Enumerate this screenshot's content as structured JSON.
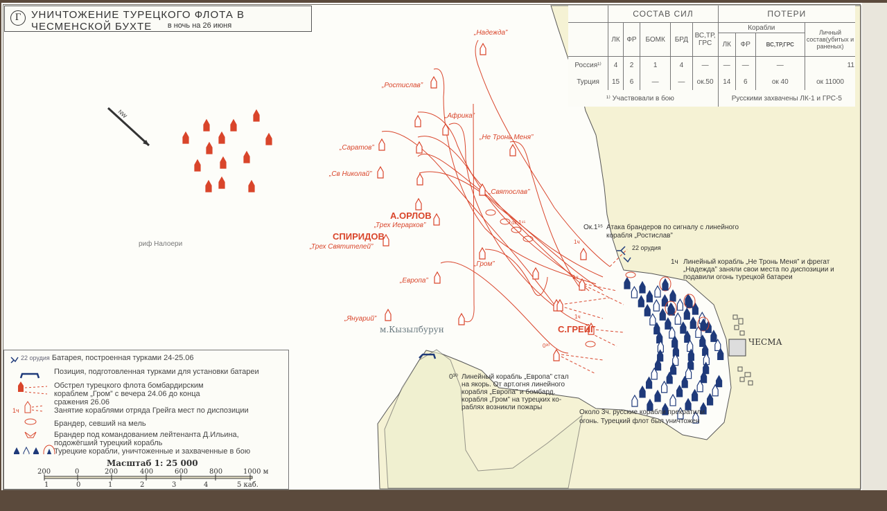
{
  "title": {
    "badge": "Г",
    "main": "УНИЧТОЖЕНИЕ ТУРЕЦКОГО ФЛОТА В ЧЕСМЕНСКОЙ БУХТЕ",
    "sub": "в ночь на 26 июня"
  },
  "colors": {
    "russian": "#d9452b",
    "turkish": "#1f3a7a",
    "land": "#f5f2d4",
    "sea": "#fdfdf9"
  },
  "compass": {
    "label": "NW",
    "icon": "north-west-arrow-icon"
  },
  "table": {
    "group_forces": "СОСТАВ СИЛ",
    "group_losses": "ПОТЕРИ",
    "sub_ships": "Корабли",
    "force_cols": [
      "ЛК",
      "ФР",
      "БОМК",
      "БРД",
      "ВС,ТР, ГРС"
    ],
    "loss_cols": [
      "ЛК",
      "ФР",
      "ВС,ТР,ГРС"
    ],
    "personnel_col": "Личный состав(убитых и раненых)",
    "rows": [
      {
        "side": "Россия¹⁾",
        "forces": [
          "4",
          "2",
          "1",
          "4",
          "—"
        ],
        "losses": [
          "—",
          "—",
          "—"
        ],
        "personnel": "11"
      },
      {
        "side": "Турция",
        "forces": [
          "15",
          "6",
          "—",
          "—",
          "ок.50"
        ],
        "losses": [
          "14",
          "6",
          "ок 40"
        ],
        "personnel": "ок 11000"
      }
    ],
    "footnote": "¹⁾ Участвовали в бою",
    "captured": "Русскими захвачены ЛК-1 и ГРС-5"
  },
  "places": {
    "reef": "риф Налоери",
    "cape": "м.Кызылбурун",
    "town": "ЧЕСМА"
  },
  "commanders": {
    "orlov": "А.ОРЛОВ",
    "spiridov": "СПИРИДОВ",
    "greig": "С.ГРЕЙГ"
  },
  "ships": {
    "nadezhda": "„Надежда”",
    "rostislav": "„Ростислав”",
    "afrika": "„Африка”",
    "saratov": "„Саратов”",
    "nikolai": "„Св Николай”",
    "ne_tron": "„Не Тронь Меня”",
    "svyatoslav": "„Святослав”",
    "ierarhov": "„Трех Иерархов”",
    "svyatitelei": "„Трех Святителей”",
    "grom": "„Гром”",
    "evropa": "„Европа”",
    "yanuarii": "„Януарий”"
  },
  "times": {
    "t115": "ок.1¹⁵",
    "t1a": "1ч",
    "t1b": "1ч",
    "t1c": "1ч",
    "t030": "0³⁰"
  },
  "annotations": {
    "fireships": {
      "time": "Ок.1¹⁵",
      "text1": "Атака брандеров по сигналу с линейного",
      "text2": "корабля „Ростислав”"
    },
    "battery": "22 орудия",
    "ne_tron": {
      "time": "1ч",
      "l1": "Линейный корабль „Не Тронь Меня” и фрегат",
      "l2": "„Надежда” заняли свои места по диспозиции и",
      "l3": "подавили огонь турецкой батареи"
    },
    "evropa": {
      "time": "0³⁰",
      "l1": "Линейный корабль „Европа” стал",
      "l2": "на якорь. От арт.огня линейного",
      "l3": "корабля „Европа” и бомбард.",
      "l4": "корабля „Гром” на турецких ко-",
      "l5": "раблях возникли пожары"
    },
    "end": {
      "l1": "Около 3ч. русские корабли прекратили",
      "l2": "огонь. Турецкий флот был уничтожен"
    }
  },
  "legend": {
    "items": [
      {
        "icon": "battery-icon",
        "prefix": "22 орудия",
        "text": "Батарея, построенная турками 24-25.06"
      },
      {
        "icon": "battery-position-icon",
        "text": "Позиция, подготовленная турками для установки батареи"
      },
      {
        "icon": "bombardment-icon",
        "text": "Обстрел турецкого флота бомбардирским кораблем „Гром” с вечера 24.06 до конца сражения 26.06"
      },
      {
        "icon": "greig-squadron-icon",
        "prefix": "1ч",
        "text": "Занятие кораблями отряда Грейга мест по диспозиции"
      },
      {
        "icon": "grounded-fireship-icon",
        "text": "Брандер, севший на мель"
      },
      {
        "icon": "ilyin-fireship-icon",
        "text": "Брандер под командованием лейтенанта Д.Ильина, подожёгший турецкий корабль"
      },
      {
        "icon": "turkish-ships-icon",
        "text": "Турецкие корабли, уничтоженные и захваченные в бою"
      }
    ],
    "scale": {
      "title": "Масштаб 1: 25 000",
      "meters": [
        "200",
        "0",
        "200",
        "400",
        "600",
        "800",
        "1000 м"
      ],
      "cables": [
        "1",
        "0",
        "1",
        "2",
        "3",
        "4",
        "5 каб."
      ]
    }
  }
}
